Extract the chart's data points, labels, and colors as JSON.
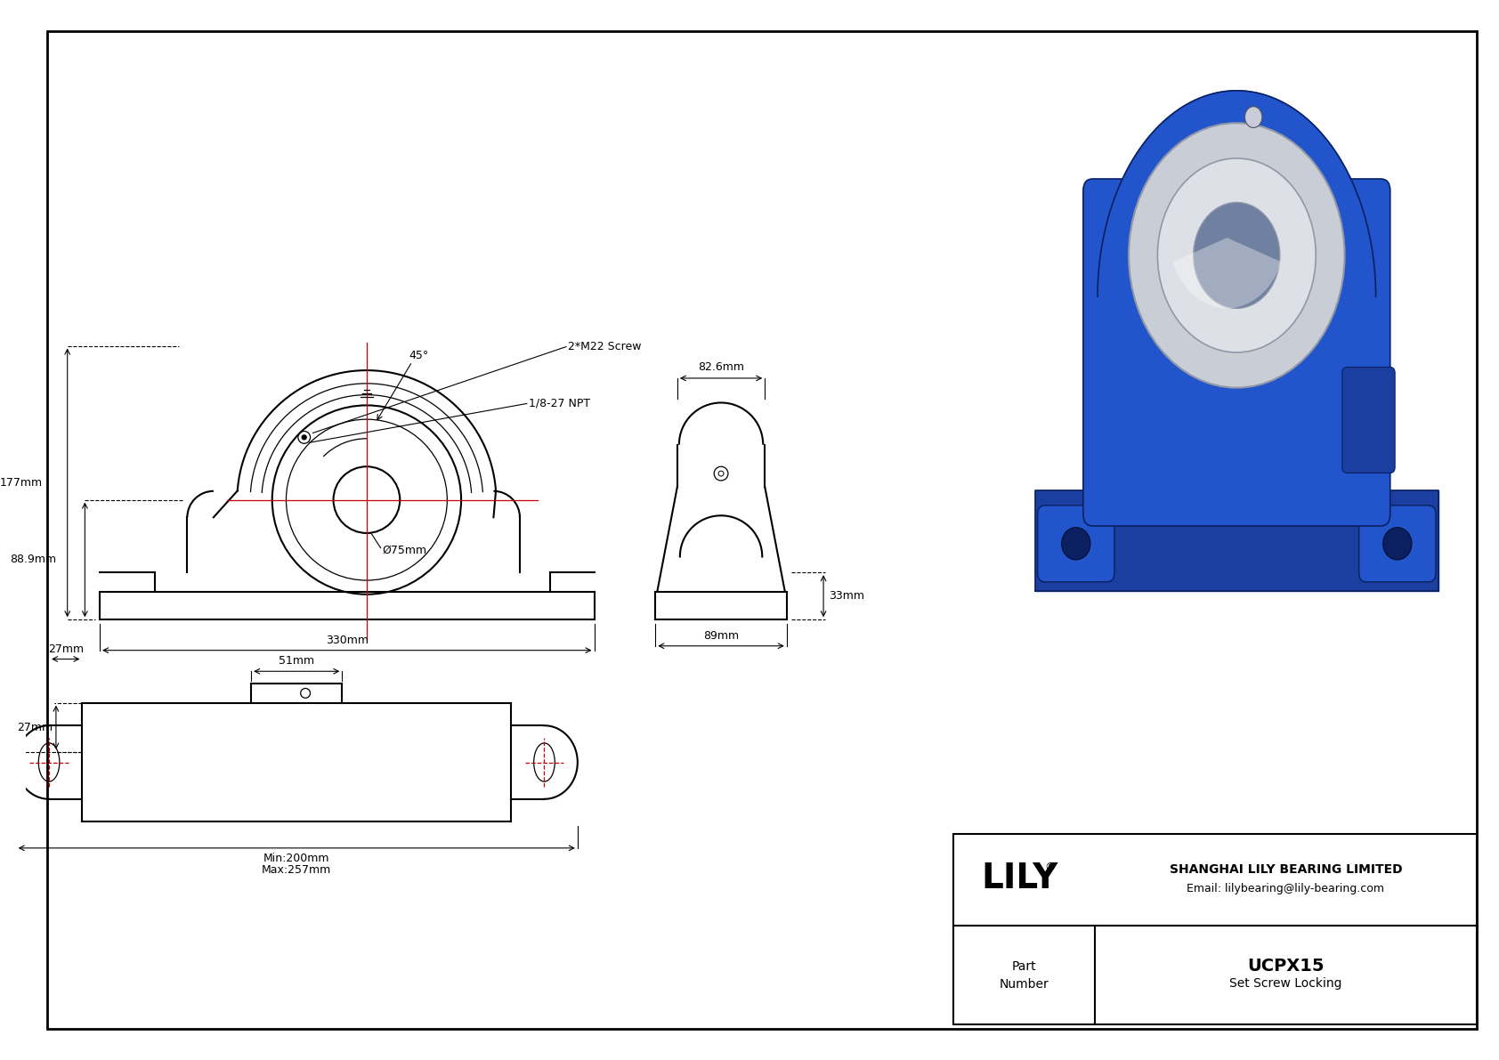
{
  "bg_color": "#ffffff",
  "line_color": "#000000",
  "red_line_color": "#cc0000",
  "title_block": {
    "company": "SHANGHAI LILY BEARING LIMITED",
    "email": "Email: lilybearing@lily-bearing.com",
    "part_number": "UCPX15",
    "description": "Set Screw Locking"
  },
  "dims": {
    "d177": "177mm",
    "d88_9": "88.9mm",
    "d330": "330mm",
    "d75": "Ø75mm",
    "d45": "45°",
    "d_npt": "1/8-27 NPT",
    "d_screw": "2*M22 Screw",
    "d82_6": "82.6mm",
    "d33": "33mm",
    "d89": "89mm",
    "d51": "51mm",
    "d27": "27mm",
    "d_min": "Min:200mm",
    "d_max": "Max:257mm"
  }
}
